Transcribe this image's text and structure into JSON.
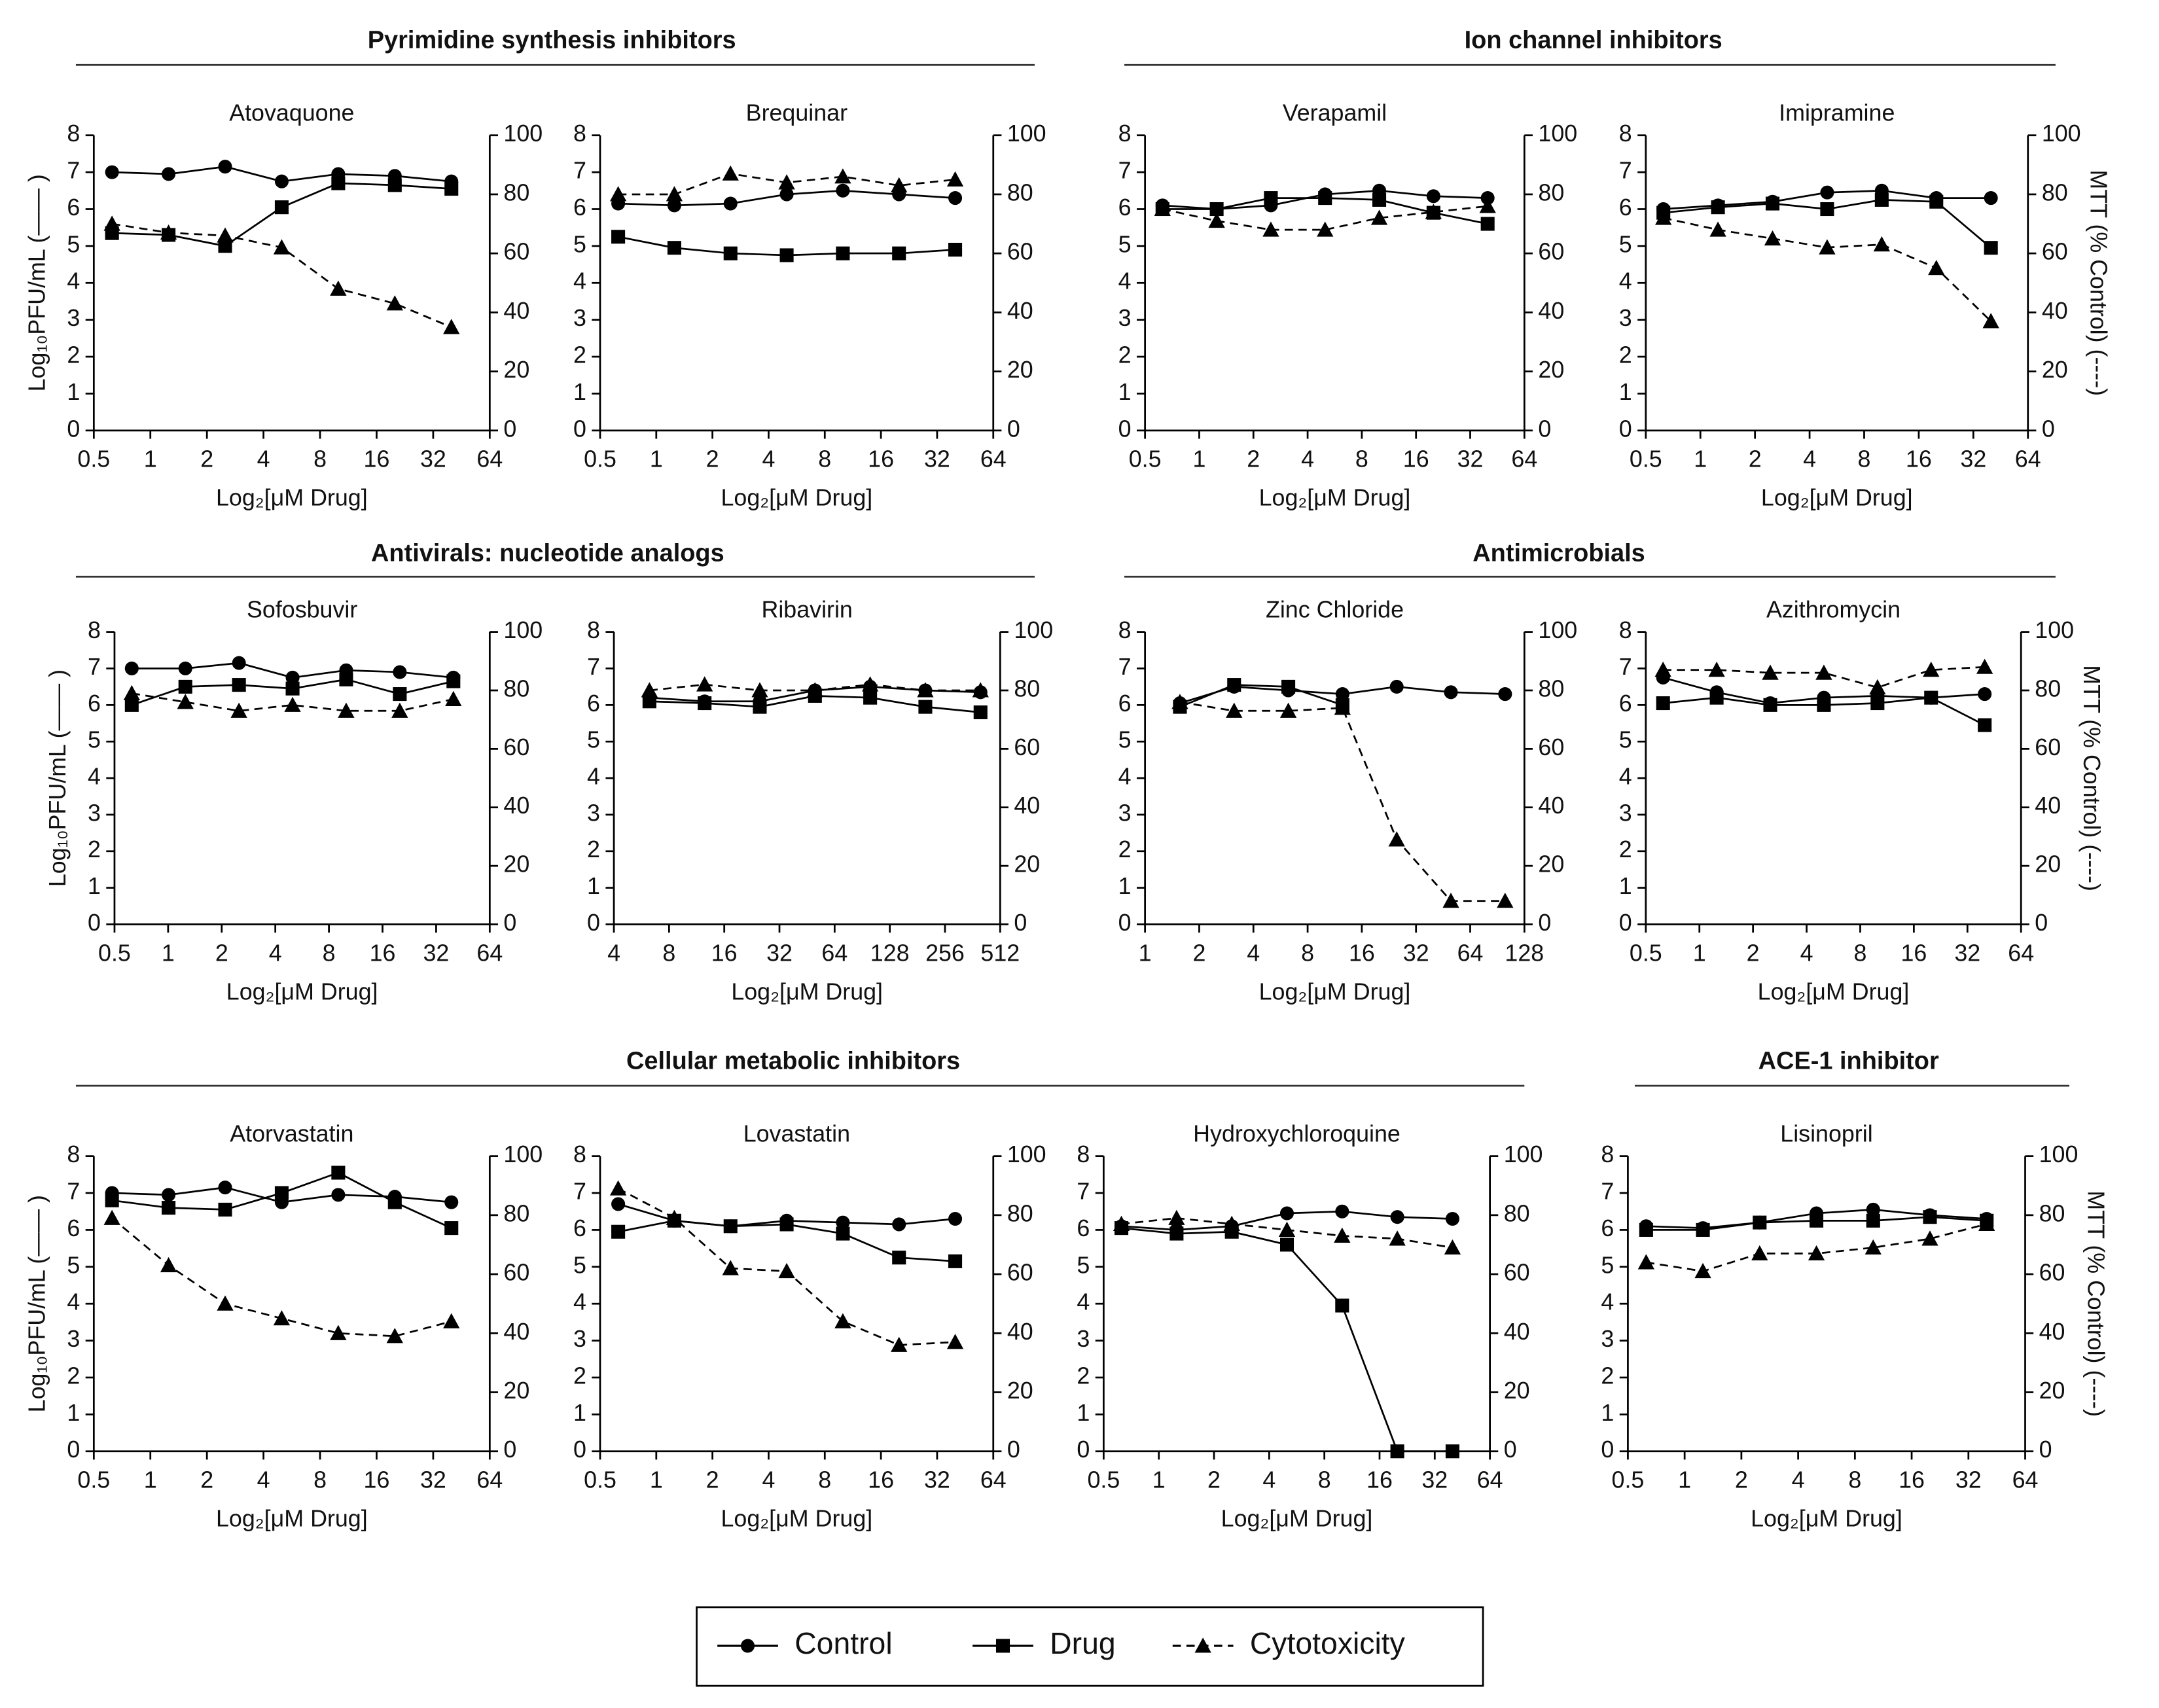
{
  "sections": [
    {
      "title": "Pyrimidine synthesis inhibitors"
    },
    {
      "title": "Ion channel inhibitors"
    },
    {
      "title": "Antivirals: nucleotide analogs"
    },
    {
      "title": "Antimicrobials"
    },
    {
      "title": "Cellular metabolic inhibitors"
    },
    {
      "title": "ACE-1 inhibitor"
    }
  ],
  "legend": {
    "names": [
      "Control",
      "Drug",
      "Cytotoxicity"
    ]
  },
  "chart_data": [
    {
      "type": "line",
      "title": "Atovaquone",
      "xscale": "log2",
      "x": [
        0.625,
        1.25,
        2.5,
        5,
        10,
        20,
        40
      ],
      "xlim": [
        0.5,
        64
      ],
      "xticks": [
        0.5,
        1,
        2,
        4,
        8,
        16,
        32,
        64
      ],
      "xlabel": "Log₂[μM Drug]",
      "ylabel": "Log₁₀PFU/mL (—— )",
      "ylim": [
        0,
        8
      ],
      "yticks": [
        0,
        1,
        2,
        3,
        4,
        5,
        6,
        7,
        8
      ],
      "y2lim": [
        0,
        100
      ],
      "y2ticks": [
        0,
        20,
        40,
        60,
        80,
        100
      ],
      "series": [
        {
          "marker": "circle",
          "color": "#000",
          "values": [
            7.0,
            6.95,
            7.15,
            6.75,
            6.95,
            6.9,
            6.75
          ]
        },
        {
          "marker": "square",
          "color": "#000",
          "values": [
            5.35,
            5.3,
            5.0,
            6.05,
            6.7,
            6.65,
            6.55
          ]
        },
        {
          "marker": "triangle",
          "color": "#000",
          "dashed": true,
          "axis": "y2",
          "values": [
            70,
            67,
            66,
            62,
            48,
            43,
            35
          ]
        }
      ]
    },
    {
      "type": "line",
      "title": "Brequinar",
      "xscale": "log2",
      "x": [
        0.625,
        1.25,
        2.5,
        5,
        10,
        20,
        40
      ],
      "xlim": [
        0.5,
        64
      ],
      "xticks": [
        0.5,
        1,
        2,
        4,
        8,
        16,
        32,
        64
      ],
      "xlabel": "Log₂[μM Drug]",
      "ylim": [
        0,
        8
      ],
      "yticks": [
        0,
        1,
        2,
        3,
        4,
        5,
        6,
        7,
        8
      ],
      "y2lim": [
        0,
        100
      ],
      "y2ticks": [
        0,
        20,
        40,
        60,
        80,
        100
      ],
      "series": [
        {
          "marker": "circle",
          "color": "#000",
          "values": [
            6.15,
            6.1,
            6.15,
            6.4,
            6.5,
            6.4,
            6.3
          ]
        },
        {
          "marker": "square",
          "color": "#000",
          "values": [
            5.25,
            4.95,
            4.8,
            4.75,
            4.8,
            4.8,
            4.9
          ]
        },
        {
          "marker": "triangle",
          "color": "#000",
          "dashed": true,
          "axis": "y2",
          "values": [
            80,
            80,
            87,
            84,
            86,
            83,
            85
          ]
        }
      ]
    },
    {
      "type": "line",
      "title": "Verapamil",
      "xscale": "log2",
      "x": [
        0.625,
        1.25,
        2.5,
        5,
        10,
        20,
        40
      ],
      "xlim": [
        0.5,
        64
      ],
      "xticks": [
        0.5,
        1,
        2,
        4,
        8,
        16,
        32,
        64
      ],
      "xlabel": "Log₂[μM Drug]",
      "ylim": [
        0,
        8
      ],
      "yticks": [
        0,
        1,
        2,
        3,
        4,
        5,
        6,
        7,
        8
      ],
      "y2lim": [
        0,
        100
      ],
      "y2ticks": [
        0,
        20,
        40,
        60,
        80,
        100
      ],
      "series": [
        {
          "marker": "circle",
          "color": "#000",
          "values": [
            6.1,
            6.0,
            6.1,
            6.4,
            6.5,
            6.35,
            6.3
          ]
        },
        {
          "marker": "square",
          "color": "#000",
          "values": [
            6.0,
            6.0,
            6.3,
            6.3,
            6.25,
            5.9,
            5.6
          ]
        },
        {
          "marker": "triangle",
          "color": "#000",
          "dashed": true,
          "axis": "y2",
          "values": [
            75,
            71,
            68,
            68,
            72,
            74,
            76
          ]
        }
      ]
    },
    {
      "type": "line",
      "title": "Imipramine",
      "xscale": "log2",
      "x": [
        0.625,
        1.25,
        2.5,
        5,
        10,
        20,
        40
      ],
      "xlim": [
        0.5,
        64
      ],
      "xticks": [
        0.5,
        1,
        2,
        4,
        8,
        16,
        32,
        64
      ],
      "xlabel": "Log₂[μM Drug]",
      "y2label": "MTT (% Control) (----)",
      "ylim": [
        0,
        8
      ],
      "yticks": [
        0,
        1,
        2,
        3,
        4,
        5,
        6,
        7,
        8
      ],
      "y2lim": [
        0,
        100
      ],
      "y2ticks": [
        0,
        20,
        40,
        60,
        80,
        100
      ],
      "series": [
        {
          "marker": "circle",
          "color": "#000",
          "values": [
            6.0,
            6.1,
            6.2,
            6.45,
            6.5,
            6.3,
            6.3
          ]
        },
        {
          "marker": "square",
          "color": "#000",
          "values": [
            5.9,
            6.05,
            6.15,
            6.0,
            6.25,
            6.2,
            4.95
          ]
        },
        {
          "marker": "triangle",
          "color": "#000",
          "dashed": true,
          "axis": "y2",
          "values": [
            72,
            68,
            65,
            62,
            63,
            55,
            37
          ]
        }
      ]
    },
    {
      "type": "line",
      "title": "Sofosbuvir",
      "xscale": "log2",
      "x": [
        0.625,
        1.25,
        2.5,
        5,
        10,
        20,
        40
      ],
      "xlim": [
        0.5,
        64
      ],
      "xticks": [
        0.5,
        1,
        2,
        4,
        8,
        16,
        32,
        64
      ],
      "xlabel": "Log₂[μM Drug]",
      "ylabel": "Log₁₀PFU/mL (—— )",
      "ylim": [
        0,
        8
      ],
      "yticks": [
        0,
        1,
        2,
        3,
        4,
        5,
        6,
        7,
        8
      ],
      "y2lim": [
        0,
        100
      ],
      "y2ticks": [
        0,
        20,
        40,
        60,
        80,
        100
      ],
      "series": [
        {
          "marker": "circle",
          "color": "#000",
          "values": [
            7.0,
            7.0,
            7.15,
            6.75,
            6.95,
            6.9,
            6.75
          ]
        },
        {
          "marker": "square",
          "color": "#000",
          "values": [
            6.0,
            6.5,
            6.55,
            6.45,
            6.7,
            6.3,
            6.65
          ]
        },
        {
          "marker": "triangle",
          "color": "#000",
          "dashed": true,
          "axis": "y2",
          "values": [
            79,
            76,
            73,
            75,
            73,
            73,
            77
          ]
        }
      ]
    },
    {
      "type": "line",
      "title": "Ribavirin",
      "xscale": "log2",
      "x": [
        6.25,
        12.5,
        25,
        50,
        100,
        200,
        400
      ],
      "xlim": [
        4,
        512
      ],
      "xticks": [
        4,
        8,
        16,
        32,
        64,
        128,
        256,
        512
      ],
      "xlabel": "Log₂[μM Drug]",
      "ylim": [
        0,
        8
      ],
      "yticks": [
        0,
        1,
        2,
        3,
        4,
        5,
        6,
        7,
        8
      ],
      "y2lim": [
        0,
        100
      ],
      "y2ticks": [
        0,
        20,
        40,
        60,
        80,
        100
      ],
      "series": [
        {
          "marker": "circle",
          "color": "#000",
          "values": [
            6.2,
            6.1,
            6.1,
            6.4,
            6.5,
            6.4,
            6.35
          ]
        },
        {
          "marker": "square",
          "color": "#000",
          "values": [
            6.1,
            6.05,
            5.95,
            6.25,
            6.2,
            5.95,
            5.8
          ]
        },
        {
          "marker": "triangle",
          "color": "#000",
          "dashed": true,
          "axis": "y2",
          "values": [
            80,
            82,
            80,
            80,
            82,
            80,
            80
          ]
        }
      ]
    },
    {
      "type": "line",
      "title": "Zinc Chloride",
      "xscale": "log2",
      "x": [
        1.5625,
        3.125,
        6.25,
        12.5,
        25,
        50,
        100
      ],
      "xlim": [
        1,
        128
      ],
      "xticks": [
        1,
        2,
        4,
        8,
        16,
        32,
        64,
        128
      ],
      "xlabel": "Log₂[μM Drug]",
      "ylim": [
        0,
        8
      ],
      "yticks": [
        0,
        1,
        2,
        3,
        4,
        5,
        6,
        7,
        8
      ],
      "y2lim": [
        0,
        100
      ],
      "y2ticks": [
        0,
        20,
        40,
        60,
        80,
        100
      ],
      "series": [
        {
          "marker": "circle",
          "color": "#000",
          "values": [
            6.05,
            6.5,
            6.4,
            6.3,
            6.5,
            6.35,
            6.3
          ]
        },
        {
          "marker": "square",
          "color": "#000",
          "values": [
            5.95,
            6.55,
            6.5,
            6.0,
            null,
            null,
            null
          ]
        },
        {
          "marker": "triangle",
          "color": "#000",
          "dashed": true,
          "axis": "y2",
          "values": [
            76,
            73,
            73,
            74,
            29,
            8,
            8
          ]
        }
      ]
    },
    {
      "type": "line",
      "title": "Azithromycin",
      "xscale": "log2",
      "x": [
        0.625,
        1.25,
        2.5,
        5,
        10,
        20,
        40
      ],
      "xlim": [
        0.5,
        64
      ],
      "xticks": [
        0.5,
        1,
        2,
        4,
        8,
        16,
        32,
        64
      ],
      "xlabel": "Log₂[μM Drug]",
      "y2label": "MTT (% Control) (----)",
      "ylim": [
        0,
        8
      ],
      "yticks": [
        0,
        1,
        2,
        3,
        4,
        5,
        6,
        7,
        8
      ],
      "y2lim": [
        0,
        100
      ],
      "y2ticks": [
        0,
        20,
        40,
        60,
        80,
        100
      ],
      "series": [
        {
          "marker": "circle",
          "color": "#000",
          "values": [
            6.75,
            6.35,
            6.05,
            6.2,
            6.25,
            6.2,
            6.3
          ]
        },
        {
          "marker": "square",
          "color": "#000",
          "values": [
            6.05,
            6.2,
            6.0,
            6.0,
            6.05,
            6.2,
            5.45
          ]
        },
        {
          "marker": "triangle",
          "color": "#000",
          "dashed": true,
          "axis": "y2",
          "values": [
            87,
            87,
            86,
            86,
            81,
            87,
            88
          ]
        }
      ]
    },
    {
      "type": "line",
      "title": "Atorvastatin",
      "xscale": "log2",
      "x": [
        0.625,
        1.25,
        2.5,
        5,
        10,
        20,
        40
      ],
      "xlim": [
        0.5,
        64
      ],
      "xticks": [
        0.5,
        1,
        2,
        4,
        8,
        16,
        32,
        64
      ],
      "xlabel": "Log₂[μM Drug]",
      "ylabel": "Log₁₀PFU/mL (—— )",
      "ylim": [
        0,
        8
      ],
      "yticks": [
        0,
        1,
        2,
        3,
        4,
        5,
        6,
        7,
        8
      ],
      "y2lim": [
        0,
        100
      ],
      "y2ticks": [
        0,
        20,
        40,
        60,
        80,
        100
      ],
      "series": [
        {
          "marker": "circle",
          "color": "#000",
          "values": [
            7.0,
            6.95,
            7.15,
            6.75,
            6.95,
            6.9,
            6.75
          ]
        },
        {
          "marker": "square",
          "color": "#000",
          "values": [
            6.8,
            6.6,
            6.55,
            7.0,
            7.55,
            6.75,
            6.05
          ]
        },
        {
          "marker": "triangle",
          "color": "#000",
          "dashed": true,
          "axis": "y2",
          "values": [
            79,
            63,
            50,
            45,
            40,
            39,
            44
          ]
        }
      ]
    },
    {
      "type": "line",
      "title": "Lovastatin",
      "xscale": "log2",
      "x": [
        0.625,
        1.25,
        2.5,
        5,
        10,
        20,
        40
      ],
      "xlim": [
        0.5,
        64
      ],
      "xticks": [
        0.5,
        1,
        2,
        4,
        8,
        16,
        32,
        64
      ],
      "xlabel": "Log₂[μM Drug]",
      "ylim": [
        0,
        8
      ],
      "yticks": [
        0,
        1,
        2,
        3,
        4,
        5,
        6,
        7,
        8
      ],
      "y2lim": [
        0,
        100
      ],
      "y2ticks": [
        0,
        20,
        40,
        60,
        80,
        100
      ],
      "series": [
        {
          "marker": "circle",
          "color": "#000",
          "values": [
            6.7,
            6.25,
            6.1,
            6.25,
            6.2,
            6.15,
            6.3
          ]
        },
        {
          "marker": "square",
          "color": "#000",
          "values": [
            5.95,
            6.25,
            6.1,
            6.15,
            5.9,
            5.25,
            5.15
          ]
        },
        {
          "marker": "triangle",
          "color": "#000",
          "dashed": true,
          "axis": "y2",
          "values": [
            89,
            79,
            62,
            61,
            44,
            36,
            37
          ]
        }
      ]
    },
    {
      "type": "line",
      "title": "Hydroxychloroquine",
      "xscale": "log2",
      "x": [
        0.625,
        1.25,
        2.5,
        5,
        10,
        20,
        40
      ],
      "xlim": [
        0.5,
        64
      ],
      "xticks": [
        0.5,
        1,
        2,
        4,
        8,
        16,
        32,
        64
      ],
      "xlabel": "Log₂[μM Drug]",
      "ylim": [
        0,
        8
      ],
      "yticks": [
        0,
        1,
        2,
        3,
        4,
        5,
        6,
        7,
        8
      ],
      "y2lim": [
        0,
        100
      ],
      "y2ticks": [
        0,
        20,
        40,
        60,
        80,
        100
      ],
      "series": [
        {
          "marker": "circle",
          "color": "#000",
          "values": [
            6.1,
            6.0,
            6.1,
            6.45,
            6.5,
            6.35,
            6.3
          ]
        },
        {
          "marker": "square",
          "color": "#000",
          "values": [
            6.05,
            5.9,
            5.95,
            5.6,
            3.95,
            0,
            0
          ]
        },
        {
          "marker": "triangle",
          "color": "#000",
          "dashed": true,
          "axis": "y2",
          "values": [
            77,
            79,
            77,
            75,
            73,
            72,
            69
          ]
        }
      ]
    },
    {
      "type": "line",
      "title": "Lisinopril",
      "xscale": "log2",
      "x": [
        0.625,
        1.25,
        2.5,
        5,
        10,
        20,
        40
      ],
      "xlim": [
        0.5,
        64
      ],
      "xticks": [
        0.5,
        1,
        2,
        4,
        8,
        16,
        32,
        64
      ],
      "xlabel": "Log₂[μM Drug]",
      "y2label": "MTT (% Control) (----)",
      "ylim": [
        0,
        8
      ],
      "yticks": [
        0,
        1,
        2,
        3,
        4,
        5,
        6,
        7,
        8
      ],
      "y2lim": [
        0,
        100
      ],
      "y2ticks": [
        0,
        20,
        40,
        60,
        80,
        100
      ],
      "series": [
        {
          "marker": "circle",
          "color": "#000",
          "values": [
            6.1,
            6.05,
            6.2,
            6.45,
            6.55,
            6.4,
            6.3
          ]
        },
        {
          "marker": "square",
          "color": "#000",
          "values": [
            6.0,
            6.0,
            6.2,
            6.25,
            6.25,
            6.35,
            6.25
          ]
        },
        {
          "marker": "triangle",
          "color": "#000",
          "dashed": true,
          "axis": "y2",
          "values": [
            64,
            61,
            67,
            67,
            69,
            72,
            77
          ]
        }
      ]
    }
  ]
}
